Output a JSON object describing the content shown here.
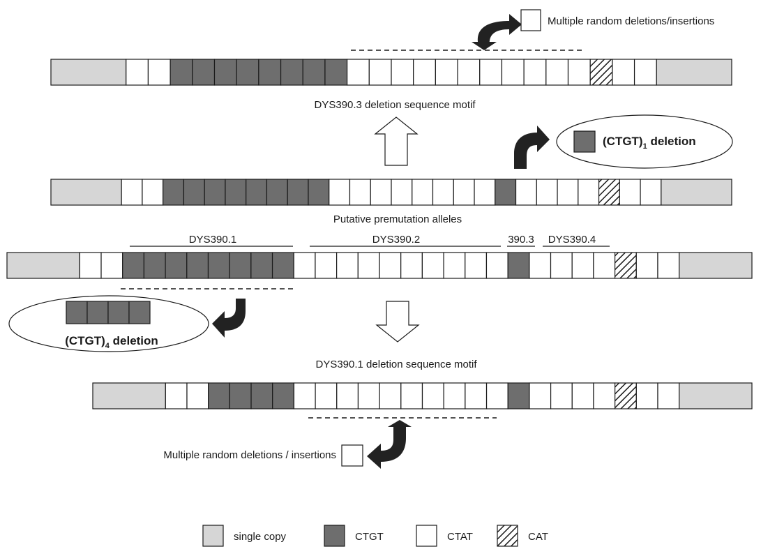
{
  "colors": {
    "single_copy": "#d6d6d6",
    "ctgt": "#6e6e6e",
    "ctat": "#ffffff",
    "stroke": "#1a1a1a",
    "arrow_dark": "#222222"
  },
  "strands": [
    {
      "id": "strand-dys390-3-motif",
      "units": [
        "single",
        "ctat",
        "ctat",
        "ctgt",
        "ctgt",
        "ctgt",
        "ctgt",
        "ctgt",
        "ctgt",
        "ctgt",
        "ctgt",
        "ctat",
        "ctat",
        "ctat",
        "ctat",
        "ctat",
        "ctat",
        "ctat",
        "ctat",
        "ctat",
        "ctat",
        "ctat",
        "cat",
        "ctat",
        "ctat",
        "single"
      ]
    },
    {
      "id": "strand-premutation",
      "units": [
        "single",
        "ctat",
        "ctat",
        "ctgt",
        "ctgt",
        "ctgt",
        "ctgt",
        "ctgt",
        "ctgt",
        "ctgt",
        "ctgt",
        "ctat",
        "ctat",
        "ctat",
        "ctat",
        "ctat",
        "ctat",
        "ctat",
        "ctat",
        "ctgt",
        "ctat",
        "ctat",
        "ctat",
        "ctat",
        "cat",
        "ctat",
        "ctat",
        "single"
      ]
    },
    {
      "id": "strand-ancestral",
      "units": [
        "single",
        "ctat",
        "ctat",
        "ctgt",
        "ctgt",
        "ctgt",
        "ctgt",
        "ctgt",
        "ctgt",
        "ctgt",
        "ctgt",
        "ctat",
        "ctat",
        "ctat",
        "ctat",
        "ctat",
        "ctat",
        "ctat",
        "ctat",
        "ctat",
        "ctat",
        "ctgt",
        "ctat",
        "ctat",
        "ctat",
        "ctat",
        "cat",
        "ctat",
        "ctat",
        "single"
      ]
    },
    {
      "id": "strand-dys390-1-motif",
      "units": [
        "single",
        "ctat",
        "ctat",
        "ctgt",
        "ctgt",
        "ctgt",
        "ctgt",
        "ctat",
        "ctat",
        "ctat",
        "ctat",
        "ctat",
        "ctat",
        "ctat",
        "ctat",
        "ctat",
        "ctat",
        "ctgt",
        "ctat",
        "ctat",
        "ctat",
        "ctat",
        "cat",
        "ctat",
        "ctat",
        "single"
      ]
    }
  ],
  "labels": {
    "top_insertions": "Multiple random deletions/insertions",
    "dys390_3_motif": "DYS390.3 deletion sequence motif",
    "ctgt1_deletion_prefix": "(CTGT)",
    "ctgt1_deletion_sub": "1",
    "ctgt1_deletion_suffix": " deletion",
    "premutation": "Putative premutation alleles",
    "region_390_1": "DYS390.1",
    "region_390_2": "DYS390.2",
    "region_390_3": "390.3",
    "region_390_4": "DYS390.4",
    "ctgt4_deletion_prefix": "(CTGT)",
    "ctgt4_deletion_sub": "4",
    "ctgt4_deletion_suffix": " deletion",
    "dys390_1_motif": "DYS390.1 deletion sequence motif",
    "bottom_insertions": "Multiple random deletions / insertions"
  },
  "legend": [
    {
      "type": "single",
      "label": "single copy"
    },
    {
      "type": "ctgt",
      "label": "CTGT"
    },
    {
      "type": "ctat",
      "label": "CTAT"
    },
    {
      "type": "cat",
      "label": "CAT"
    }
  ]
}
